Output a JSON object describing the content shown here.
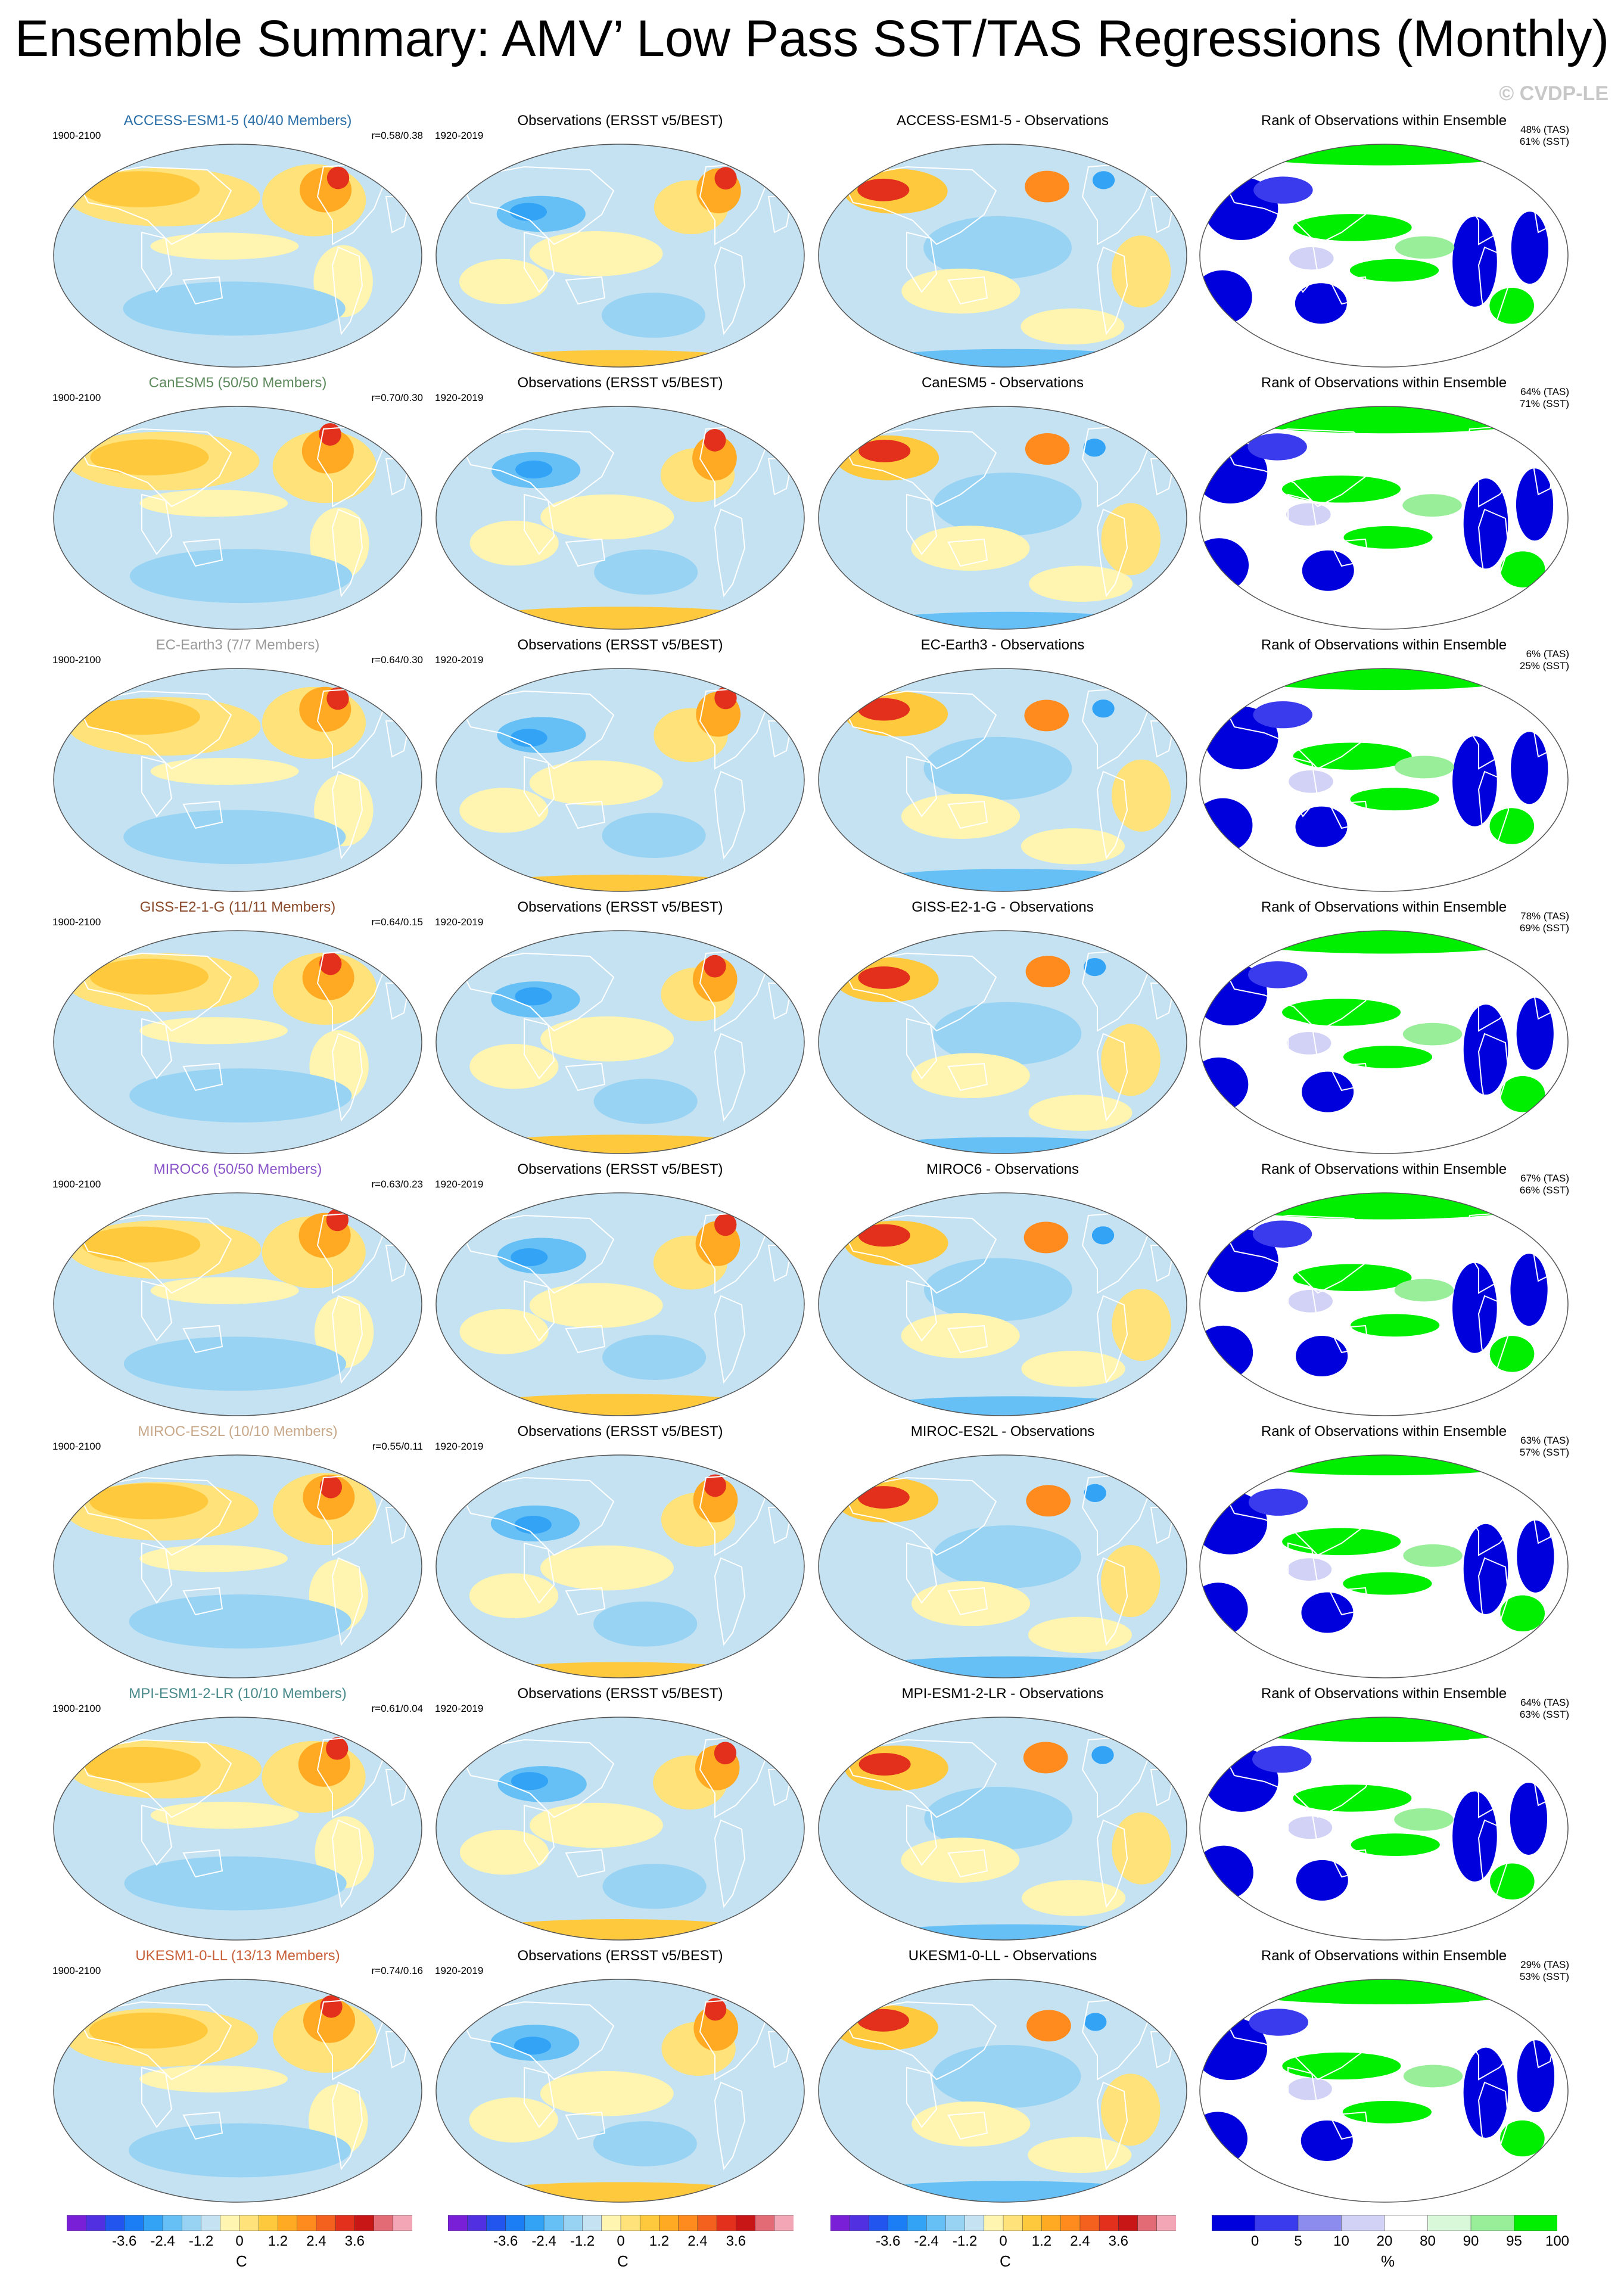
{
  "title": "Ensemble Summary: AMV’ Low Pass SST/TAS Regressions (Monthly)",
  "copyright": "© CVDP-LE",
  "column_titles": {
    "observations": "Observations (ERSST v5/BEST)",
    "rank": "Rank of Observations within Ensemble"
  },
  "model_period": "1900-2100",
  "obs_period": "1920-2019",
  "rows": [
    {
      "model_title": "ACCESS-ESM1-5 (40/40 Members)",
      "title_color": "#2b6fa8",
      "r": "r=0.58/0.38",
      "diff_title": "ACCESS-ESM1-5 - Observations",
      "tas": "48% (TAS)",
      "sst": "61% (SST)"
    },
    {
      "model_title": "CanESM5 (50/50 Members)",
      "title_color": "#5e8a5e",
      "r": "r=0.70/0.30",
      "diff_title": "CanESM5 - Observations",
      "tas": "64% (TAS)",
      "sst": "71% (SST)"
    },
    {
      "model_title": "EC-Earth3 (7/7 Members)",
      "title_color": "#9a9a9a",
      "r": "r=0.64/0.30",
      "diff_title": "EC-Earth3 - Observations",
      "tas": "6% (TAS)",
      "sst": "25% (SST)"
    },
    {
      "model_title": "GISS-E2-1-G (11/11 Members)",
      "title_color": "#8a4a2a",
      "r": "r=0.64/0.15",
      "diff_title": "GISS-E2-1-G - Observations",
      "tas": "78% (TAS)",
      "sst": "69% (SST)"
    },
    {
      "model_title": "MIROC6 (50/50 Members)",
      "title_color": "#8a55c8",
      "r": "r=0.63/0.23",
      "diff_title": "MIROC6 - Observations",
      "tas": "67% (TAS)",
      "sst": "66% (SST)"
    },
    {
      "model_title": "MIROC-ES2L (10/10 Members)",
      "title_color": "#c8a888",
      "r": "r=0.55/0.11",
      "diff_title": "MIROC-ES2L - Observations",
      "tas": "63% (TAS)",
      "sst": "57% (SST)"
    },
    {
      "model_title": "MPI-ESM1-2-LR (10/10 Members)",
      "title_color": "#4a8a8a",
      "r": "r=0.61/0.04",
      "diff_title": "MPI-ESM1-2-LR - Observations",
      "tas": "64% (TAS)",
      "sst": "63% (SST)"
    },
    {
      "model_title": "UKESM1-0-LL (13/13 Members)",
      "title_color": "#c8603a",
      "r": "r=0.74/0.16",
      "diff_title": "UKESM1-0-LL - Observations",
      "tas": "29% (TAS)",
      "sst": "53% (SST)"
    }
  ],
  "colorbars": {
    "regression": {
      "unit": "C",
      "labels": [
        "-3.6",
        "-2.4",
        "-1.2",
        "0",
        "1.2",
        "2.4",
        "3.6"
      ],
      "colors": [
        "#7a1fd8",
        "#5030e0",
        "#2255ee",
        "#1c7ef5",
        "#33a3f6",
        "#66c0f5",
        "#98d3f3",
        "#c4e2f2",
        "#fff5b0",
        "#ffe27a",
        "#ffc93e",
        "#ffaa22",
        "#ff8a1e",
        "#f4601e",
        "#e2301c",
        "#c81616",
        "#e36b75",
        "#f2a6b6"
      ]
    },
    "rank": {
      "unit": "%",
      "labels": [
        "0",
        "5",
        "10",
        "20",
        "80",
        "90",
        "95",
        "100"
      ],
      "colors": [
        "#0000dd",
        "#3b3bee",
        "#8c8cee",
        "#d2d2f6",
        "#ffffff",
        "#d9f7d9",
        "#99ee99",
        "#00ee00"
      ]
    }
  }
}
